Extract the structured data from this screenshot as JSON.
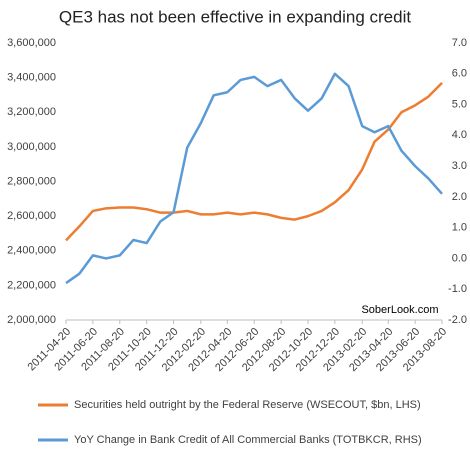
{
  "chart_data": {
    "type": "line",
    "title": "QE3 has not been effective in expanding credit",
    "annotation": "SoberLook.com",
    "x": [
      "2011-04-20",
      "2011-05-20",
      "2011-06-20",
      "2011-07-20",
      "2011-08-20",
      "2011-09-20",
      "2011-10-20",
      "2011-11-20",
      "2011-12-20",
      "2012-01-20",
      "2012-02-20",
      "2012-03-20",
      "2012-04-20",
      "2012-05-20",
      "2012-06-20",
      "2012-07-20",
      "2012-08-20",
      "2012-09-20",
      "2012-10-20",
      "2012-11-20",
      "2012-12-20",
      "2013-01-20",
      "2013-02-20",
      "2013-03-20",
      "2013-04-20",
      "2013-05-20",
      "2013-06-20",
      "2013-07-20",
      "2013-08-20"
    ],
    "xlim": [
      "2011-04-20",
      "2013-08-20"
    ],
    "xticks": [
      "2011-04-20",
      "2011-06-20",
      "2011-08-20",
      "2011-10-20",
      "2011-12-20",
      "2012-02-20",
      "2012-04-20",
      "2012-06-20",
      "2012-08-20",
      "2012-10-20",
      "2012-12-20",
      "2013-02-20",
      "2013-04-20",
      "2013-06-20",
      "2013-08-20"
    ],
    "series": [
      {
        "name": "Securities held outright by the Federal Reserve (WSECOUT, $bn, LHS)",
        "color": "#ed7d31",
        "axis": "y",
        "values": [
          2460000,
          2540000,
          2630000,
          2645000,
          2650000,
          2650000,
          2640000,
          2620000,
          2620000,
          2630000,
          2610000,
          2610000,
          2620000,
          2610000,
          2620000,
          2610000,
          2590000,
          2580000,
          2600000,
          2630000,
          2680000,
          2750000,
          2870000,
          3030000,
          3100000,
          3200000,
          3240000,
          3290000,
          3370000
        ]
      },
      {
        "name": "YoY Change in Bank Credit of All Commercial Banks (TOTBKCR, RHS)",
        "color": "#5b9bd5",
        "axis": "y2",
        "values": [
          -0.8,
          -0.5,
          0.1,
          0.0,
          0.1,
          0.6,
          0.5,
          1.2,
          1.5,
          3.6,
          4.4,
          5.3,
          5.4,
          5.8,
          5.9,
          5.6,
          5.8,
          5.2,
          4.8,
          5.2,
          6.0,
          5.6,
          4.3,
          4.1,
          4.3,
          3.5,
          3.0,
          2.6,
          2.1
        ]
      }
    ],
    "ylim": [
      2000000,
      3600000
    ],
    "yticks": [
      {
        "value": 2000000,
        "label": "2,000,000"
      },
      {
        "value": 2200000,
        "label": "2,200,000"
      },
      {
        "value": 2400000,
        "label": "2,400,000"
      },
      {
        "value": 2600000,
        "label": "2,600,000"
      },
      {
        "value": 2800000,
        "label": "2,800,000"
      },
      {
        "value": 3000000,
        "label": "3,000,000"
      },
      {
        "value": 3200000,
        "label": "3,200,000"
      },
      {
        "value": 3400000,
        "label": "3,400,000"
      },
      {
        "value": 3600000,
        "label": "3,600,000"
      }
    ],
    "y2lim": [
      -2,
      7
    ],
    "y2ticks": [
      {
        "value": -2,
        "label": "-2.0"
      },
      {
        "value": -1,
        "label": "-1.0"
      },
      {
        "value": 0,
        "label": "0.0"
      },
      {
        "value": 1,
        "label": "1.0"
      },
      {
        "value": 2,
        "label": "2.0"
      },
      {
        "value": 3,
        "label": "3.0"
      },
      {
        "value": 4,
        "label": "4.0"
      },
      {
        "value": 5,
        "label": "5.0"
      },
      {
        "value": 6,
        "label": "6.0"
      },
      {
        "value": 7,
        "label": "7.0"
      }
    ]
  }
}
